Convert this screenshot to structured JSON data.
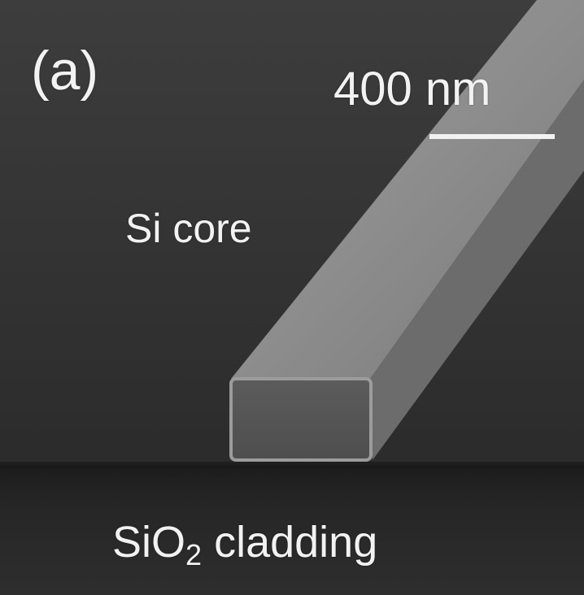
{
  "image": {
    "panel_label": "(a)",
    "scale_bar": {
      "label": "400 nm",
      "length_nm": 400
    },
    "labels": {
      "core": "Si core",
      "cladding_prefix": "SiO",
      "cladding_subscript": "2",
      "cladding_suffix": " cladding"
    }
  }
}
